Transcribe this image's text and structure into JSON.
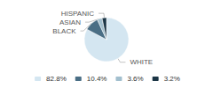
{
  "chart_data": {
    "type": "pie",
    "categories": [
      "WHITE",
      "BLACK",
      "ASIAN",
      "HISPANIC"
    ],
    "values": [
      82.8,
      10.4,
      3.6,
      3.2
    ],
    "colors": [
      "#d4e6f1",
      "#4a6e85",
      "#a2bfce",
      "#1b3545"
    ],
    "legend_labels": [
      "82.8%",
      "10.4%",
      "3.6%",
      "3.2%"
    ],
    "legend": "bottom"
  }
}
